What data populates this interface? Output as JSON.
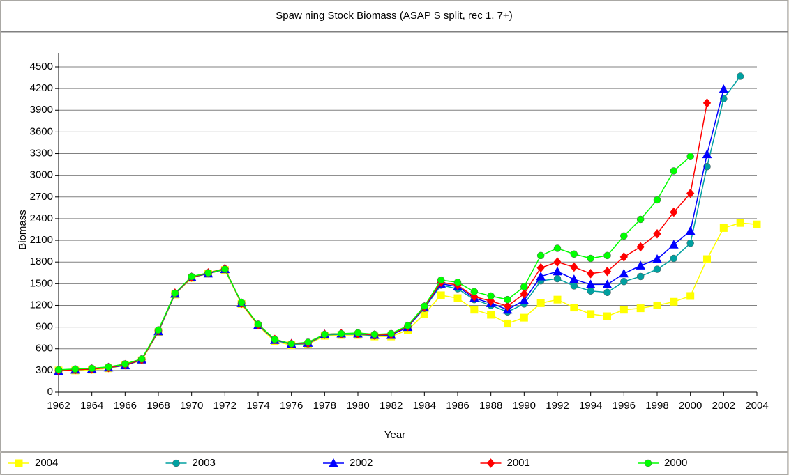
{
  "chart_data": {
    "type": "line",
    "title": "Spaw ning Stock Biomass (ASAP S split, rec 1, 7+)",
    "xlabel": "Year",
    "ylabel": "Biomass",
    "x": [
      1962,
      1963,
      1964,
      1965,
      1966,
      1967,
      1968,
      1969,
      1970,
      1971,
      1972,
      1973,
      1974,
      1975,
      1976,
      1977,
      1978,
      1979,
      1980,
      1981,
      1982,
      1983,
      1984,
      1985,
      1986,
      1987,
      1988,
      1989,
      1990,
      1991,
      1992,
      1993,
      1994,
      1995,
      1996,
      1997,
      1998,
      1999,
      2000,
      2001,
      2002,
      2003,
      2004
    ],
    "xlim": [
      1962,
      2004
    ],
    "xticks": [
      1962,
      1964,
      1966,
      1968,
      1970,
      1972,
      1974,
      1976,
      1978,
      1980,
      1982,
      1984,
      1986,
      1988,
      1990,
      1992,
      1994,
      1996,
      1998,
      2000,
      2002,
      2004
    ],
    "ylim": [
      0,
      4500
    ],
    "yticks": [
      0,
      300,
      600,
      900,
      1200,
      1500,
      1800,
      2100,
      2400,
      2700,
      3000,
      3300,
      3600,
      3900,
      4200,
      4500
    ],
    "grid": true,
    "legend": "bottom",
    "series": [
      {
        "name": "2004",
        "color": "#ffff00",
        "marker": "square",
        "values": [
          300,
          300,
          310,
          330,
          370,
          440,
          830,
          1350,
          1580,
          1640,
          1690,
          1220,
          920,
          700,
          650,
          660,
          780,
          790,
          790,
          770,
          770,
          860,
          1080,
          1340,
          1300,
          1140,
          1070,
          950,
          1030,
          1230,
          1280,
          1170,
          1080,
          1050,
          1140,
          1160,
          1200,
          1250,
          1330,
          1840,
          2270,
          2340,
          2320
        ]
      },
      {
        "name": "2003",
        "color": "#00a0a0",
        "marker": "circle",
        "values": [
          300,
          310,
          320,
          340,
          370,
          450,
          840,
          1360,
          1590,
          1640,
          1700,
          1230,
          930,
          720,
          660,
          670,
          790,
          800,
          800,
          780,
          790,
          900,
          1160,
          1480,
          1430,
          1280,
          1200,
          1110,
          1220,
          1540,
          1570,
          1470,
          1400,
          1380,
          1530,
          1600,
          1700,
          1850,
          2060,
          3120,
          4060,
          4370,
          null
        ]
      },
      {
        "name": "2002",
        "color": "#0000ff",
        "marker": "triangle",
        "values": [
          290,
          310,
          320,
          340,
          370,
          450,
          840,
          1360,
          1590,
          1640,
          1700,
          1230,
          930,
          720,
          670,
          680,
          800,
          810,
          810,
          790,
          790,
          900,
          1170,
          1500,
          1460,
          1300,
          1230,
          1140,
          1270,
          1600,
          1670,
          1560,
          1490,
          1490,
          1640,
          1750,
          1840,
          2040,
          2230,
          3290,
          4190,
          null,
          null
        ]
      },
      {
        "name": "2001",
        "color": "#ff0000",
        "marker": "diamond",
        "values": [
          300,
          310,
          320,
          340,
          380,
          450,
          850,
          1370,
          1590,
          1650,
          1710,
          1230,
          930,
          730,
          670,
          680,
          800,
          810,
          810,
          790,
          800,
          910,
          1180,
          1520,
          1480,
          1320,
          1260,
          1190,
          1360,
          1720,
          1800,
          1730,
          1640,
          1670,
          1870,
          2010,
          2190,
          2490,
          2750,
          4000,
          null,
          null,
          null
        ]
      },
      {
        "name": "2000",
        "color": "#00ff00",
        "marker": "circle",
        "values": [
          310,
          320,
          330,
          350,
          390,
          460,
          860,
          1370,
          1600,
          1650,
          1700,
          1240,
          940,
          730,
          670,
          690,
          800,
          810,
          820,
          800,
          810,
          920,
          1190,
          1550,
          1520,
          1390,
          1330,
          1280,
          1460,
          1890,
          1990,
          1910,
          1850,
          1890,
          2160,
          2390,
          2660,
          3060,
          3260,
          null,
          null,
          null,
          null
        ]
      }
    ]
  }
}
